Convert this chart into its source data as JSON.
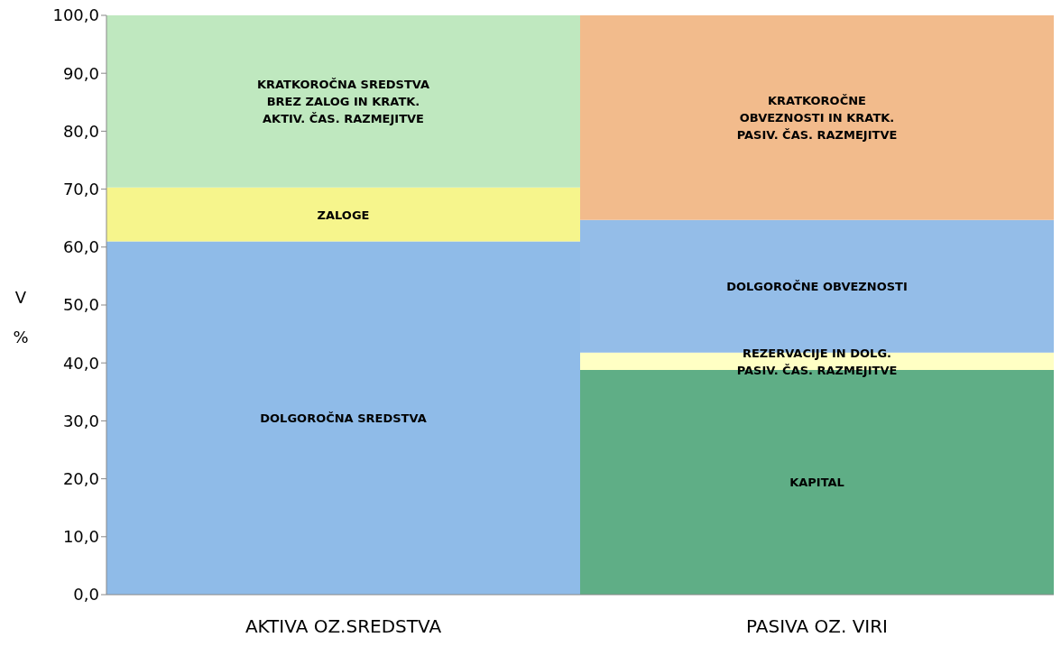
{
  "chart_data": {
    "type": "bar",
    "stacked": true,
    "ylabel": "V %",
    "categories": [
      "AKTIVA OZ.SREDSTVA",
      "PASIVA OZ. VIRI"
    ],
    "series": [
      {
        "name": "DOLGOROČNA SREDSTVA",
        "color": "#8fbbe8",
        "values": [
          61.0,
          null
        ]
      },
      {
        "name": "ZALOGE",
        "color": "#f6f58c",
        "values": [
          9.3,
          null
        ]
      },
      {
        "name": "KRATKOROČNA SREDSTVA\nBREZ ZALOG IN KRATK.\nAKTIV. ČAS. RAZMEJITVE",
        "color": "#bfe8bf",
        "values": [
          29.7,
          null
        ]
      },
      {
        "name": "KAPITAL",
        "color": "#5fae86",
        "values": [
          null,
          38.8
        ]
      },
      {
        "name": "REZERVACIJE IN DOLG.\nPASIV. ČAS. RAZMEJITVE",
        "color": "#ffffc4",
        "values": [
          null,
          3.0
        ]
      },
      {
        "name": "DOLGOROČNE OBVEZNOSTI",
        "color": "#94bde8",
        "values": [
          null,
          22.9
        ]
      },
      {
        "name": "KRATKOROČNE\nOBVEZNOSTI IN KRATK.\nPASIV. ČAS. RAZMEJITVE",
        "color": "#f2bb8c",
        "values": [
          null,
          35.3
        ]
      }
    ],
    "ylim": [
      0,
      100
    ],
    "yticks": [
      {
        "value": 0,
        "label": "0,0"
      },
      {
        "value": 10,
        "label": "10,0"
      },
      {
        "value": 20,
        "label": "20,0"
      },
      {
        "value": 30,
        "label": "30,0"
      },
      {
        "value": 40,
        "label": "40,0"
      },
      {
        "value": 50,
        "label": "50,0"
      },
      {
        "value": 60,
        "label": "60,0"
      },
      {
        "value": 70,
        "label": "70,0"
      },
      {
        "value": 80,
        "label": "80,0"
      },
      {
        "value": 90,
        "label": "90,0"
      },
      {
        "value": 100,
        "label": "100,0"
      }
    ],
    "grid": false,
    "legend": false
  }
}
